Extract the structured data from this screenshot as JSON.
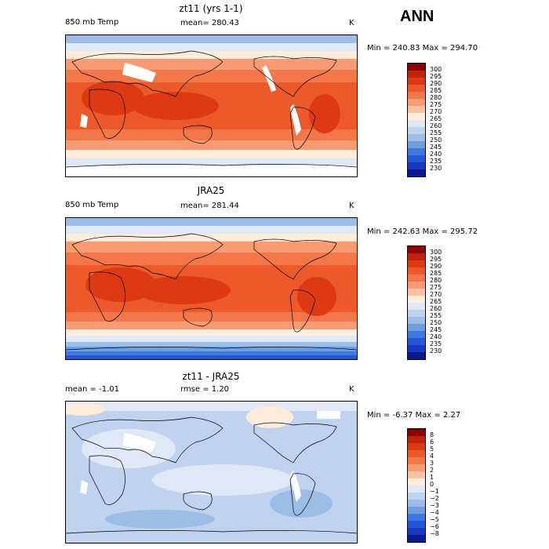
{
  "season": "ANN",
  "panels": [
    {
      "title": "zt11 (yrs 1-1)",
      "left_label": "850 mb Temp",
      "center_label": "mean= 280.43",
      "units": "K",
      "minmax": "Min = 240.83 Max = 294.70",
      "colorbar_levels": [
        "300",
        "295",
        "290",
        "285",
        "280",
        "275",
        "270",
        "265",
        "260",
        "255",
        "250",
        "245",
        "240",
        "235",
        "230"
      ],
      "colors": [
        "#8b0000",
        "#c1220b",
        "#dd3a14",
        "#ec5a2a",
        "#f2784a",
        "#f89a72",
        "#fcc2a2",
        "#fdebdc",
        "#dfe8f4",
        "#bfd3ee",
        "#9dbde6",
        "#6f9ee0",
        "#3f78de",
        "#2457d9",
        "#1a38c4",
        "#0b1a8f"
      ]
    },
    {
      "title": "JRA25",
      "left_label": "850 mb Temp",
      "center_label": "mean= 281.44",
      "units": "K",
      "minmax": "Min = 242.63 Max = 295.72",
      "colorbar_levels": [
        "300",
        "295",
        "290",
        "285",
        "280",
        "275",
        "270",
        "265",
        "260",
        "255",
        "250",
        "245",
        "240",
        "235",
        "230"
      ],
      "colors": [
        "#8b0000",
        "#c1220b",
        "#dd3a14",
        "#ec5a2a",
        "#f2784a",
        "#f89a72",
        "#fcc2a2",
        "#fdebdc",
        "#dfe8f4",
        "#bfd3ee",
        "#9dbde6",
        "#6f9ee0",
        "#3f78de",
        "#2457d9",
        "#1a38c4",
        "#0b1a8f"
      ]
    },
    {
      "title": "zt11 - JRA25",
      "left_label": "mean =  -1.01",
      "center_label": "rmse =   1.20",
      "units": "K",
      "minmax": "Min =  -6.37 Max =   2.27",
      "colorbar_levels": [
        "8",
        "6",
        "5",
        "4",
        "3",
        "2",
        "1",
        "0",
        "−1",
        "−2",
        "−3",
        "−4",
        "−5",
        "−6",
        "−8"
      ],
      "colors": [
        "#8b0000",
        "#c1220b",
        "#dd3a14",
        "#ec5a2a",
        "#f2784a",
        "#f89a72",
        "#fcc2a2",
        "#fdebdc",
        "#dfe8f4",
        "#bfd3ee",
        "#9dbde6",
        "#6f9ee0",
        "#3f78de",
        "#2457d9",
        "#1a38c4",
        "#0b1a8f"
      ]
    }
  ]
}
